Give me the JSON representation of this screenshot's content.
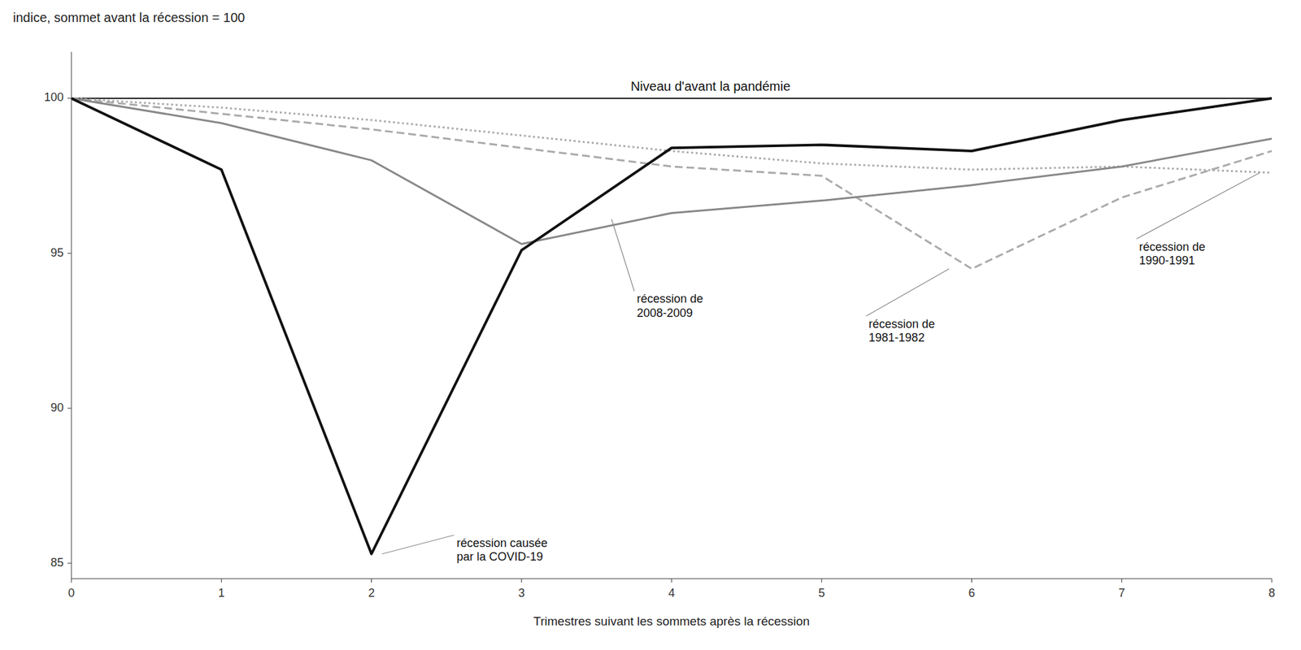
{
  "chart_data": {
    "type": "line",
    "title": "indice, sommet avant la récession = 100",
    "x_label": "Trimestres suivant les sommets après la récession",
    "x": [
      0,
      1,
      2,
      3,
      4,
      5,
      6,
      7,
      8
    ],
    "series": [
      {
        "color": "#aaaaaa",
        "line_style": "dotted",
        "values": [
          100,
          99.7,
          99.3,
          98.8,
          98.3,
          97.9,
          97.7,
          97.8,
          97.6
        ]
      },
      {
        "color": "#aaaaaa",
        "line_style": "dashed",
        "values": [
          100,
          99.5,
          99.0,
          98.4,
          97.8,
          97.5,
          94.5,
          96.8,
          98.3
        ]
      },
      {
        "color": "#888888",
        "line_style": "solid",
        "values": [
          100,
          99.2,
          98.0,
          95.3,
          96.3,
          96.7,
          97.2,
          97.8,
          98.7
        ]
      },
      {
        "color": "#111111",
        "line_style": "solid",
        "values": [
          100,
          97.7,
          85.3,
          95.1,
          98.4,
          98.5,
          98.3,
          99.3,
          100.0
        ]
      }
    ],
    "reference_line": {
      "y": 100,
      "label": "Niveau d'avant la pandémie",
      "color": "#111111"
    },
    "annotations": [
      {
        "text": "récession causée\npar la COVID-19",
        "x": 2.07,
        "y": 85.3
      },
      {
        "text": "récession de\n2008-2009",
        "x": 3.6,
        "y": 96.1
      },
      {
        "text": "récession de\n1981-1982",
        "x": 5.85,
        "y": 94.5
      },
      {
        "text": "récession de\n1990-1991",
        "x": 7.92,
        "y": 97.6
      }
    ],
    "xlim": [
      0,
      8
    ],
    "ylim": [
      84.5,
      101.5
    ],
    "xticks": [
      0,
      1,
      2,
      3,
      4,
      5,
      6,
      7,
      8
    ],
    "yticks": [
      85,
      90,
      95,
      100
    ],
    "grid": false
  }
}
